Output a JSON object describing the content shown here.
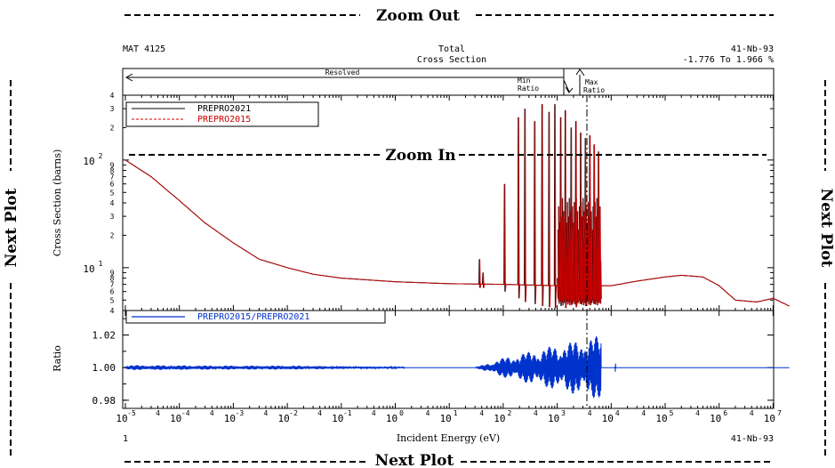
{
  "nav": {
    "zoom_out": "Zoom Out",
    "zoom_in": "Zoom In",
    "next_plot_bottom": "Next Plot",
    "next_plot_left": "Next Plot",
    "next_plot_right": "Next Plot"
  },
  "header": {
    "mat": "MAT 4125",
    "title_line1": "Total",
    "title_line2": "Cross Section",
    "nuclide": "41-Nb-93",
    "range": "-1.776 To 1.966 %"
  },
  "regions": {
    "resolved": "Resolved",
    "min_ratio_line1": "Min",
    "min_ratio_line2": "Ratio",
    "max_ratio_line1": "Max",
    "max_ratio_line2": "Ratio"
  },
  "footer": {
    "page": "1",
    "xlabel": "Incident Energy (eV)",
    "nuclide": "41-Nb-93"
  },
  "colors": {
    "prepro2021": "#000000",
    "prepro2015": "#cc0000",
    "ratio": "#0033cc"
  },
  "chart_data": [
    {
      "type": "line",
      "ylabel": "Cross Section (barns)",
      "xscale": "log",
      "yscale": "log",
      "xlim": [
        1e-05,
        20000000.0
      ],
      "ylim": [
        4,
        400
      ],
      "x_ticks": [
        "10^-5",
        "10^-4",
        "10^-3",
        "10^-2",
        "10^-1",
        "10^0",
        "10^1",
        "10^2",
        "10^3",
        "10^4",
        "10^5",
        "10^6",
        "10^7"
      ],
      "y_ticks": [
        "10^1",
        "10^2"
      ],
      "legend": {
        "placement": "top-left",
        "entries": [
          "PREPRO2021",
          "PREPRO2015"
        ]
      },
      "series": [
        {
          "name": "PREPRO2021",
          "x": [
            1e-05,
            3e-05,
            0.0001,
            0.0003,
            0.001,
            0.003,
            0.01,
            0.03,
            0.1,
            1,
            10,
            100,
            300,
            1000,
            3000,
            6000,
            10000.0,
            30000.0,
            100000.0,
            200000.0,
            500000.0,
            1000000.0,
            2000000.0,
            5000000.0,
            10000000.0,
            20000000.0
          ],
          "y": [
            100,
            70,
            42,
            26,
            17,
            12,
            10,
            8.7,
            8,
            7.4,
            7.1,
            7.0,
            6.9,
            6.8,
            6.8,
            6.8,
            6.8,
            7.5,
            8.2,
            8.5,
            8.2,
            6.8,
            5.0,
            4.8,
            5.2,
            4.4
          ]
        },
        {
          "name": "PREPRO2015",
          "x": [
            1e-05,
            3e-05,
            0.0001,
            0.0003,
            0.001,
            0.003,
            0.01,
            0.03,
            0.1,
            1,
            10,
            100,
            300,
            1000,
            3000,
            6000,
            10000.0,
            30000.0,
            100000.0,
            200000.0,
            500000.0,
            1000000.0,
            2000000.0,
            5000000.0,
            10000000.0,
            20000000.0
          ],
          "y": [
            100,
            70,
            42,
            26,
            17,
            12,
            10,
            8.7,
            8,
            7.4,
            7.1,
            7.0,
            6.9,
            6.8,
            6.8,
            6.8,
            6.8,
            7.5,
            8.2,
            8.5,
            8.2,
            6.8,
            5.0,
            4.8,
            5.2,
            4.4
          ]
        }
      ],
      "resonances": {
        "x": [
          36,
          42,
          105,
          190,
          250,
          380,
          520,
          700,
          900,
          1150,
          1400,
          1800,
          2200,
          2700,
          3300,
          4000,
          4800,
          5800
        ],
        "peak_y": [
          12,
          9,
          60,
          250,
          300,
          230,
          330,
          280,
          330,
          250,
          290,
          200,
          230,
          180,
          160,
          170,
          140,
          120
        ],
        "dip_y": [
          6.5,
          6.5,
          6.0,
          5.2,
          4.8,
          4.6,
          4.4,
          4.3,
          4.2,
          4.4,
          4.2,
          4.5,
          4.3,
          4.6,
          4.4,
          4.5,
          4.6,
          4.7
        ]
      }
    },
    {
      "type": "line",
      "ylabel": "Ratio",
      "xscale": "log",
      "xlim": [
        1e-05,
        20000000.0
      ],
      "ylim": [
        0.975,
        1.035
      ],
      "y_ticks": [
        "0.98",
        "1.00",
        "1.02"
      ],
      "legend": {
        "placement": "top-left",
        "entries": [
          "PREPRO2015/PREPRO2021"
        ]
      },
      "series": [
        {
          "name": "PREPRO2015/PREPRO2021",
          "x": [
            1e-05,
            0.001,
            0.01,
            0.1,
            1,
            30,
            100,
            1000,
            6500,
            10000.0,
            10000000.0,
            20000000.0
          ],
          "y": [
            1.0,
            1.0,
            1.0,
            1.0,
            1.0,
            1.0,
            1.0,
            1.0,
            1.0,
            1.0,
            1.0,
            1.0
          ],
          "noise_amplitude": [
            0.0015,
            0.0012,
            0.0012,
            0.0008,
            0.0004,
            0.0,
            0.006,
            0.014,
            0.02,
            0.0,
            0.0,
            0.0
          ]
        }
      ]
    }
  ]
}
